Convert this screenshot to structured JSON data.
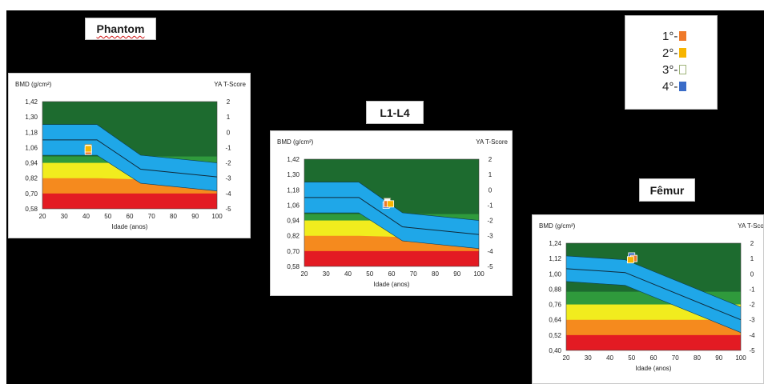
{
  "labels": {
    "phantom": "Phantom",
    "l1l4": "L1-L4",
    "femur": "Fêmur"
  },
  "legend": {
    "items": [
      {
        "label": "1°-",
        "color": "#ef7a2a",
        "hollow": false
      },
      {
        "label": "2°-",
        "color": "#f7b500",
        "hollow": false
      },
      {
        "label": "3°-",
        "color": "#e8f0d0",
        "hollow": true
      },
      {
        "label": "4°-",
        "color": "#3a6cc8",
        "hollow": false
      }
    ]
  },
  "colors": {
    "dark_green": "#1d6b2f",
    "mid_green": "#2f9a3c",
    "yellow": "#f1ec1e",
    "orange": "#f58a1e",
    "red": "#e31b23",
    "blue": "#1fa7e8"
  },
  "chart_data": [
    {
      "type": "scatter",
      "title": "Phantom",
      "ylabel": "BMD (g/cm²)",
      "ylabel_right": "YA T-Score",
      "xlabel": "Idade (anos)",
      "x_ticks": [
        20,
        30,
        40,
        50,
        60,
        70,
        80,
        90,
        100
      ],
      "y_ticks": [
        "1,42",
        "1,30",
        "1,18",
        "1,06",
        "0,94",
        "0,82",
        "0,70",
        "0,58"
      ],
      "y_right_ticks": [
        "2",
        "1",
        "0",
        "-1",
        "-2",
        "-3",
        "-4",
        "-5"
      ],
      "xlim": [
        20,
        100
      ],
      "ylim": [
        0.58,
        1.42
      ],
      "grid": false,
      "reference_band": {
        "x": [
          20,
          45,
          65,
          100
        ],
        "upper": [
          1.24,
          1.24,
          1.0,
          0.94
        ],
        "mean": [
          1.12,
          1.12,
          0.89,
          0.83
        ],
        "lower": [
          1.0,
          1.0,
          0.78,
          0.72
        ]
      },
      "zones": {
        "green_top": 0.99,
        "yellow_top": 0.94,
        "orange_top": [
          0.82,
          0.82,
          0.81,
          0.75
        ],
        "red_top": 0.7
      },
      "series": [
        {
          "name": "1°-",
          "x": [
            41
          ],
          "y": [
            1.03
          ]
        },
        {
          "name": "2°-",
          "x": [
            41
          ],
          "y": [
            1.05
          ]
        },
        {
          "name": "3°-",
          "x": [
            41
          ],
          "y": [
            1.06
          ]
        },
        {
          "name": "4°-",
          "x": [
            41
          ],
          "y": [
            1.04
          ]
        }
      ]
    },
    {
      "type": "scatter",
      "title": "L1-L4",
      "ylabel": "BMD (g/cm²)",
      "ylabel_right": "YA T-Score",
      "xlabel": "Idade (anos)",
      "x_ticks": [
        20,
        30,
        40,
        50,
        60,
        70,
        80,
        90,
        100
      ],
      "y_ticks": [
        "1,42",
        "1,30",
        "1,18",
        "1,06",
        "0,94",
        "0,82",
        "0,70",
        "0,58"
      ],
      "y_right_ticks": [
        "2",
        "1",
        "0",
        "-1",
        "-2",
        "-3",
        "-4",
        "-5"
      ],
      "xlim": [
        20,
        100
      ],
      "ylim": [
        0.58,
        1.42
      ],
      "grid": false,
      "reference_band": {
        "x": [
          20,
          45,
          65,
          100
        ],
        "upper": [
          1.24,
          1.24,
          1.0,
          0.94
        ],
        "mean": [
          1.12,
          1.12,
          0.89,
          0.83
        ],
        "lower": [
          1.0,
          1.0,
          0.78,
          0.72
        ]
      },
      "zones": {
        "green_top": 0.99,
        "yellow_top": 0.94,
        "orange_top": [
          0.82,
          0.82,
          0.81,
          0.75
        ],
        "red_top": 0.7
      },
      "series": [
        {
          "name": "1°-",
          "x": [
            58
          ],
          "y": [
            1.07
          ]
        },
        {
          "name": "2°-",
          "x": [
            59.5
          ],
          "y": [
            1.07
          ]
        },
        {
          "name": "3°-",
          "x": [
            58
          ],
          "y": [
            1.09
          ]
        },
        {
          "name": "4°-",
          "x": [
            57.5
          ],
          "y": [
            1.06
          ]
        }
      ]
    },
    {
      "type": "scatter",
      "title": "Fêmur",
      "ylabel": "BMD (g/cm²)",
      "ylabel_right": "YA T-Score",
      "xlabel": "Idade (anos)",
      "x_ticks": [
        20,
        30,
        40,
        50,
        60,
        70,
        80,
        90,
        100
      ],
      "y_ticks": [
        "1,24",
        "1,12",
        "1,00",
        "0,88",
        "0,76",
        "0,64",
        "0,52",
        "0,40"
      ],
      "y_right_ticks": [
        "2",
        "1",
        "0",
        "-1",
        "-2",
        "-3",
        "-4",
        "-5"
      ],
      "xlim": [
        20,
        100
      ],
      "ylim": [
        0.4,
        1.24
      ],
      "grid": false,
      "reference_band": {
        "x": [
          20,
          47,
          100
        ],
        "upper": [
          1.14,
          1.11,
          0.74
        ],
        "mean": [
          1.04,
          1.01,
          0.64
        ],
        "lower": [
          0.94,
          0.91,
          0.54
        ]
      },
      "zones": {
        "green_top": 0.86,
        "yellow_top": 0.76,
        "orange_top": [
          0.64,
          0.64,
          0.64
        ],
        "red_top": 0.52
      },
      "series": [
        {
          "name": "1°-",
          "x": [
            51
          ],
          "y": [
            1.12
          ]
        },
        {
          "name": "2°-",
          "x": [
            49.5
          ],
          "y": [
            1.11
          ]
        },
        {
          "name": "3°-",
          "x": [
            51
          ],
          "y": [
            1.12
          ]
        },
        {
          "name": "4°-",
          "x": [
            50
          ],
          "y": [
            1.14
          ]
        }
      ]
    }
  ]
}
